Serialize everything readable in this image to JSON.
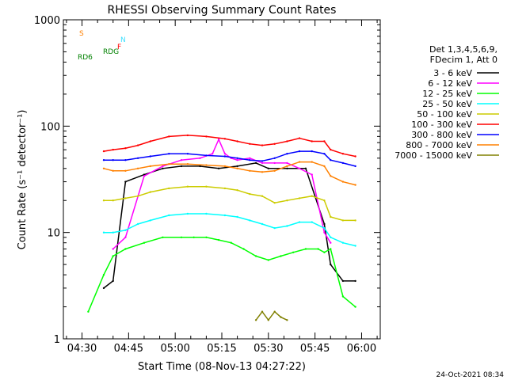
{
  "chart_data": {
    "type": "line",
    "title": "RHESSI Observing Summary Count Rates",
    "xlabel": "Start Time (08-Nov-13 04:27:22)",
    "ylabel": "Count Rate (s⁻¹ detector⁻¹)",
    "yscale": "log",
    "ylim": [
      1,
      1000
    ],
    "xlim_minutes": [
      -6,
      96
    ],
    "x_ticks": [
      {
        "label": "04:30",
        "minute": 0
      },
      {
        "label": "04:45",
        "minute": 15
      },
      {
        "label": "05:00",
        "minute": 30
      },
      {
        "label": "05:15",
        "minute": 45
      },
      {
        "label": "05:30",
        "minute": 60
      },
      {
        "label": "05:45",
        "minute": 75
      },
      {
        "label": "06:00",
        "minute": 90
      }
    ],
    "y_ticks": [
      {
        "label": "1",
        "value": 1
      },
      {
        "label": "10",
        "value": 10
      },
      {
        "label": "100",
        "value": 100
      },
      {
        "label": "1000",
        "value": 1000
      }
    ],
    "legend": {
      "header": [
        "Det 1,3,4,5,6,9,",
        "FDecim 1, Att 0"
      ],
      "placement": "right"
    },
    "flags": [
      {
        "label": "S",
        "color": "#ff8000"
      },
      {
        "label": "N",
        "color": "#40e0ff"
      },
      {
        "label": "F",
        "color": "#ff0000"
      },
      {
        "label": "RDG",
        "color": "#008000"
      },
      {
        "label": "RD6",
        "color": "#008000"
      }
    ],
    "series": [
      {
        "name": "3 - 6 keV",
        "color": "#000000",
        "x": [
          7,
          10,
          14,
          20,
          26,
          32,
          38,
          44,
          50,
          56,
          60,
          66,
          72,
          78,
          80,
          84,
          88
        ],
        "y": [
          3.0,
          3.5,
          30,
          35,
          40,
          42,
          42,
          40,
          42,
          45,
          40,
          40,
          40,
          12,
          5,
          3.5,
          3.5
        ]
      },
      {
        "name": "6 - 12 keV",
        "color": "#ff00ff",
        "x": [
          10,
          14,
          20,
          26,
          32,
          38,
          42,
          44,
          46,
          48,
          50,
          54,
          58,
          62,
          66,
          70,
          74,
          78,
          80
        ],
        "y": [
          7,
          9,
          34,
          42,
          48,
          50,
          55,
          75,
          55,
          50,
          48,
          50,
          45,
          45,
          45,
          40,
          35,
          10,
          8
        ]
      },
      {
        "name": "12 - 25 keV",
        "color": "#00ff00",
        "x": [
          2,
          7,
          10,
          14,
          20,
          26,
          32,
          36,
          40,
          44,
          48,
          52,
          56,
          60,
          64,
          68,
          72,
          76,
          78,
          80,
          84,
          88
        ],
        "y": [
          1.8,
          4,
          6,
          7,
          8,
          9,
          9,
          9,
          9,
          8.5,
          8,
          7,
          6,
          5.5,
          6,
          6.5,
          7,
          7,
          6.5,
          7,
          2.5,
          2
        ]
      },
      {
        "name": "25 - 50 keV",
        "color": "#00ffff",
        "x": [
          7,
          10,
          14,
          18,
          22,
          28,
          34,
          40,
          46,
          50,
          54,
          58,
          62,
          66,
          70,
          74,
          78,
          80,
          84,
          88
        ],
        "y": [
          10,
          10,
          10.5,
          12,
          13,
          14.5,
          15,
          15,
          14.5,
          14,
          13,
          12,
          11,
          11.5,
          12.5,
          12.5,
          11,
          9,
          8,
          7.5
        ]
      },
      {
        "name": "50 - 100 keV",
        "color": "#cccc00",
        "x": [
          7,
          10,
          14,
          18,
          22,
          28,
          34,
          40,
          46,
          50,
          54,
          58,
          62,
          66,
          70,
          74,
          78,
          80,
          84,
          88
        ],
        "y": [
          20,
          20,
          21,
          22,
          24,
          26,
          27,
          27,
          26,
          25,
          23,
          22,
          19,
          20,
          21,
          22,
          20,
          14,
          13,
          13
        ]
      },
      {
        "name": "100 - 300 keV",
        "color": "#ff0000",
        "x": [
          7,
          10,
          14,
          18,
          22,
          28,
          34,
          40,
          46,
          50,
          54,
          58,
          62,
          66,
          70,
          74,
          78,
          80,
          84,
          88
        ],
        "y": [
          58,
          60,
          62,
          66,
          72,
          80,
          82,
          80,
          76,
          72,
          68,
          66,
          68,
          72,
          77,
          72,
          72,
          60,
          55,
          52
        ]
      },
      {
        "name": "300 - 800 keV",
        "color": "#0000ff",
        "x": [
          7,
          10,
          14,
          18,
          22,
          28,
          34,
          40,
          46,
          50,
          54,
          58,
          62,
          66,
          70,
          74,
          78,
          80,
          84,
          88
        ],
        "y": [
          48,
          48,
          48,
          50,
          52,
          55,
          55,
          53,
          52,
          50,
          48,
          47,
          50,
          55,
          58,
          58,
          55,
          48,
          45,
          42
        ]
      },
      {
        "name": "800 - 7000 keV",
        "color": "#ff8000",
        "x": [
          7,
          10,
          14,
          18,
          22,
          28,
          34,
          40,
          46,
          50,
          54,
          58,
          62,
          66,
          70,
          74,
          78,
          80,
          84,
          88
        ],
        "y": [
          40,
          38,
          38,
          40,
          42,
          44,
          44,
          43,
          42,
          40,
          38,
          37,
          38,
          42,
          46,
          46,
          42,
          34,
          30,
          28
        ]
      },
      {
        "name": "7000 - 15000 keV",
        "color": "#808000",
        "x": [
          56,
          58,
          60,
          62,
          64,
          66
        ],
        "y": [
          1.5,
          1.8,
          1.5,
          1.8,
          1.6,
          1.5
        ]
      }
    ],
    "footer_date": "24-Oct-2021 08:34"
  }
}
